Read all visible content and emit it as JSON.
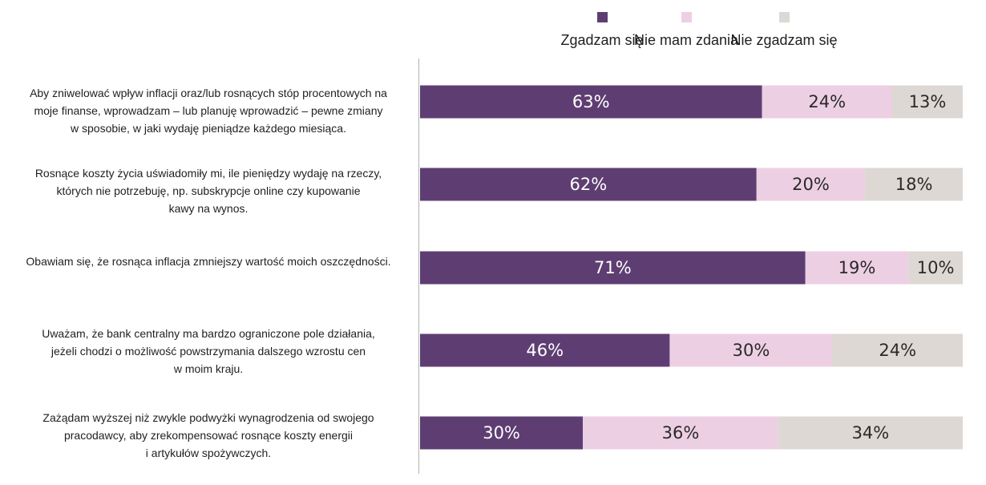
{
  "chart_data": {
    "type": "bar",
    "orientation": "horizontal",
    "stacked": true,
    "categories": [
      "Aby zniwelować wpływ inflacji oraz/lub rosnących stóp procentowych na\nmoje finanse, wprowadzam – lub planuję wprowadzić – pewne zmiany\nw sposobie, w jaki wydaję pieniądze każdego miesiąca.",
      "Rosnące koszty życia uświadomiły mi, ile pieniędzy wydaję na rzeczy,\nktórych nie potrzebuję, np. subskrypcje online czy kupowanie\nkawy na wynos.",
      "Obawiam się, że rosnąca inflacja zmniejszy wartość moich oszczędności.",
      "Uważam, że bank centralny ma bardzo ograniczone pole działania,\njeżeli chodzi o możliwość powstrzymania dalszego wzrostu cen\nw moim kraju.",
      "Zażądam wyższej niż zwykle podwyżki wynagrodzenia od swojego\npracodawcy, aby zrekompensować rosnące koszty energii\ni artykułów spożywczych."
    ],
    "series": [
      {
        "name": "Zgadzam się",
        "color": "#5e3e72",
        "label_color": "#ffffff",
        "values": [
          63,
          62,
          71,
          46,
          30
        ],
        "labels": [
          "63%",
          "62%",
          "71%",
          "46%",
          "30%"
        ]
      },
      {
        "name": "Nie mam zdania",
        "color": "#edcfe4",
        "label_color": "#2a2a2a",
        "values": [
          24,
          20,
          19,
          30,
          36
        ],
        "labels": [
          "24%",
          "20%",
          "19%",
          "30%",
          "36%"
        ]
      },
      {
        "name": "Nie zgadzam się",
        "color": "#ddd8d3",
        "label_color": "#2a2a2a",
        "values": [
          13,
          18,
          10,
          24,
          34
        ],
        "labels": [
          "13%",
          "18%",
          "10%",
          "24%",
          "34%"
        ]
      }
    ],
    "xlim": [
      0,
      100
    ],
    "legend_position": "top",
    "grid": false
  }
}
